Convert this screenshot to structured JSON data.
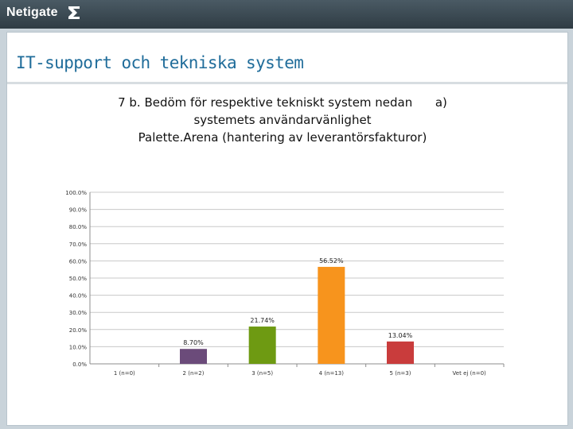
{
  "header": {
    "logo_text": "Netigate",
    "logo_icon": "netigate-n-icon"
  },
  "slide": {
    "title": "IT-support och tekniska system"
  },
  "chart_data": {
    "type": "bar",
    "title_lines": [
      "7 b. Bedöm för respektive tekniskt system nedan      a)",
      "systemets användarvänlighet",
      "Palette.Arena (hantering av leverantörsfakturor)"
    ],
    "categories": [
      "1 (n=0)",
      "2 (n=2)",
      "3 (n=5)",
      "4 (n=13)",
      "5 (n=3)",
      "Vet ej (n=0)"
    ],
    "values": [
      0,
      8.7,
      21.74,
      56.52,
      13.04,
      0
    ],
    "data_labels": [
      "",
      "8.70%",
      "21.74%",
      "56.52%",
      "13.04%",
      ""
    ],
    "colors": [
      "#4e81bd",
      "#6b4b7a",
      "#6e9a12",
      "#f7941d",
      "#c93c3c",
      "#7f7f7f"
    ],
    "y_ticks": [
      "0.0%",
      "10.0%",
      "20.0%",
      "30.0%",
      "40.0%",
      "50.0%",
      "60.0%",
      "70.0%",
      "80.0%",
      "90.0%",
      "100.0%"
    ],
    "ylim": [
      0,
      100
    ],
    "grid": true,
    "xlabel": "",
    "ylabel": ""
  }
}
